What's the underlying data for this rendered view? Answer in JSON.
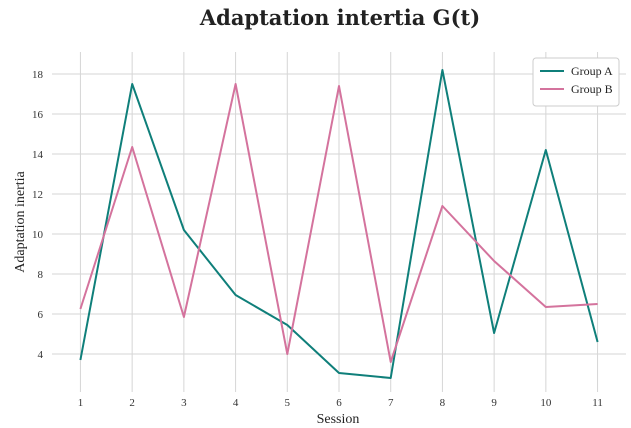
{
  "chart_data": {
    "type": "line",
    "title": "Adaptation intertia G(t)",
    "xlabel": "Session",
    "ylabel": "Adaptation inertia",
    "x": [
      1,
      2,
      3,
      4,
      5,
      6,
      7,
      8,
      9,
      10,
      11
    ],
    "xlim": [
      0.45,
      11.55
    ],
    "ylim": [
      2.1,
      19.1
    ],
    "yticks": [
      4,
      6,
      8,
      10,
      12,
      14,
      16,
      18
    ],
    "grid": true,
    "legend_position": "top-right",
    "series": [
      {
        "name": "Group A",
        "color": "#0f7f7a",
        "values": [
          3.7,
          17.5,
          10.2,
          6.95,
          5.45,
          3.05,
          2.8,
          18.2,
          5.05,
          14.2,
          4.6
        ]
      },
      {
        "name": "Group B",
        "color": "#d4739d",
        "values": [
          6.25,
          14.35,
          5.85,
          17.5,
          4.0,
          17.4,
          3.6,
          11.4,
          8.65,
          6.35,
          6.5
        ]
      }
    ]
  }
}
